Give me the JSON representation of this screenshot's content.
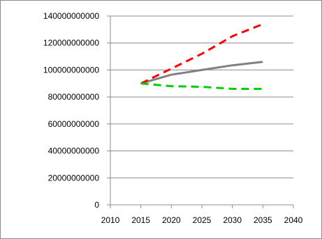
{
  "chart_data": {
    "type": "line",
    "title": "",
    "xlabel": "",
    "ylabel": "",
    "xlim": [
      2010,
      2040
    ],
    "ylim": [
      0,
      140000000000
    ],
    "x_ticks": [
      "2010",
      "2015",
      "2020",
      "2025",
      "2030",
      "2035",
      "2040"
    ],
    "y_ticks": [
      "0",
      "20000000000",
      "40000000000",
      "60000000000",
      "80000000000",
      "100000000000",
      "120000000000",
      "140000000000"
    ],
    "grid": true,
    "legend": "none",
    "series": [
      {
        "color": "#808080",
        "dash": "solid",
        "x": [
          2015,
          2020,
          2025,
          2030,
          2035
        ],
        "values": [
          90000000000,
          96500000000,
          100000000000,
          103500000000,
          106000000000
        ]
      },
      {
        "color": "#ff0000",
        "dash": "dashed",
        "x": [
          2015,
          2020,
          2025,
          2030,
          2035
        ],
        "values": [
          90000000000,
          101000000000,
          112000000000,
          125000000000,
          134000000000
        ]
      },
      {
        "color": "#00cc00",
        "dash": "dashed",
        "x": [
          2015,
          2020,
          2025,
          2030,
          2035
        ],
        "values": [
          90000000000,
          88000000000,
          87500000000,
          86000000000,
          86000000000
        ]
      }
    ]
  }
}
